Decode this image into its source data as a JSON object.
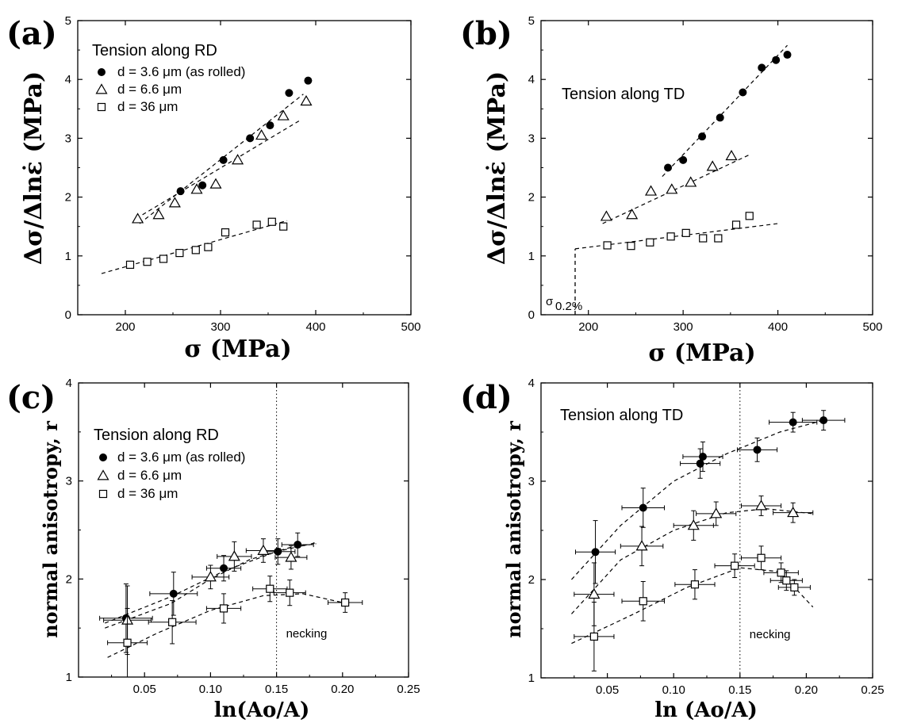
{
  "chart_data": [
    {
      "panel": "(a)",
      "type": "scatter",
      "xlabel": "σ (MPa)",
      "ylabel": "Δσ/Δlnε̇ (MPa)",
      "xlim": [
        150,
        500
      ],
      "ylim": [
        0,
        5
      ],
      "xticks": [
        "200",
        "300",
        "400",
        "500"
      ],
      "yticks": [
        "0",
        "1",
        "2",
        "3",
        "4",
        "5"
      ],
      "heading": "Tension along RD",
      "series": [
        {
          "name": "d = 3.6 μm  (as rolled)",
          "marker": "filled-circle",
          "points": [
            [
              258,
              2.1
            ],
            [
              281,
              2.2
            ],
            [
              303,
              2.63
            ],
            [
              331,
              3.0
            ],
            [
              352,
              3.22
            ],
            [
              372,
              3.77
            ],
            [
              392,
              3.98
            ]
          ],
          "fit": [
            [
              215,
              1.55
            ],
            [
              387,
              3.75
            ]
          ]
        },
        {
          "name": "d = 6.6 μm",
          "marker": "open-triangle",
          "points": [
            [
              213,
              1.63
            ],
            [
              235,
              1.7
            ],
            [
              252,
              1.9
            ],
            [
              275,
              2.13
            ],
            [
              295,
              2.22
            ],
            [
              318,
              2.63
            ],
            [
              343,
              3.05
            ],
            [
              366,
              3.38
            ],
            [
              390,
              3.63
            ]
          ],
          "fit": [
            [
              218,
              1.7
            ],
            [
              383,
              3.3
            ]
          ]
        },
        {
          "name": "d = 36  μm",
          "marker": "open-square",
          "points": [
            [
              205,
              0.85
            ],
            [
              223,
              0.9
            ],
            [
              240,
              0.95
            ],
            [
              257,
              1.05
            ],
            [
              274,
              1.1
            ],
            [
              287,
              1.15
            ],
            [
              305,
              1.4
            ],
            [
              338,
              1.53
            ],
            [
              354,
              1.58
            ],
            [
              366,
              1.5
            ]
          ],
          "fit": [
            [
              175,
              0.7
            ],
            [
              370,
              1.6
            ]
          ]
        }
      ]
    },
    {
      "panel": "(b)",
      "type": "scatter",
      "xlabel": "σ (MPa)",
      "ylabel": "Δσ/Δlnε̇ (MPa)",
      "xlim": [
        150,
        500
      ],
      "ylim": [
        0,
        5
      ],
      "xticks": [
        "200",
        "300",
        "400",
        "500"
      ],
      "yticks": [
        "0",
        "1",
        "2",
        "3",
        "4",
        "5"
      ],
      "heading": "Tension along TD",
      "annotation": "σ",
      "annotation_sub": "0.2%",
      "series": [
        {
          "name": "d = 3.6 μm",
          "marker": "filled-circle",
          "points": [
            [
              284,
              2.5
            ],
            [
              300,
              2.63
            ],
            [
              320,
              3.03
            ],
            [
              339,
              3.35
            ],
            [
              363,
              3.78
            ],
            [
              383,
              4.2
            ],
            [
              398,
              4.33
            ],
            [
              410,
              4.42
            ]
          ],
          "fit": [
            [
              278,
              2.35
            ],
            [
              410,
              4.58
            ]
          ]
        },
        {
          "name": "d = 6.6 μm",
          "marker": "open-triangle",
          "points": [
            [
              219,
              1.67
            ],
            [
              246,
              1.7
            ],
            [
              266,
              2.1
            ],
            [
              288,
              2.13
            ],
            [
              308,
              2.25
            ],
            [
              331,
              2.52
            ],
            [
              351,
              2.7
            ]
          ],
          "fit": [
            [
              215,
              1.55
            ],
            [
              370,
              2.72
            ]
          ]
        },
        {
          "name": "d = 36  μm",
          "marker": "open-square",
          "points": [
            [
              220,
              1.18
            ],
            [
              245,
              1.17
            ],
            [
              265,
              1.23
            ],
            [
              287,
              1.33
            ],
            [
              303,
              1.39
            ],
            [
              321,
              1.3
            ],
            [
              337,
              1.3
            ],
            [
              356,
              1.53
            ],
            [
              370,
              1.68
            ]
          ],
          "fit": [
            [
              186,
              1.12
            ],
            [
              400,
              1.55
            ]
          ]
        }
      ],
      "yield_line": {
        "x": 186,
        "ybottom": 0,
        "ytop": 1.12
      }
    },
    {
      "panel": "(c)",
      "type": "scatter",
      "xlabel": "ln(Ao/A)",
      "ylabel": "normal anisotropy, r",
      "xlim": [
        0.0,
        0.25
      ],
      "ylim": [
        1,
        4
      ],
      "xticks": [
        "0.05",
        "0.10",
        "0.15",
        "0.20",
        "0.25"
      ],
      "yticks": [
        "1",
        "2",
        "3",
        "4"
      ],
      "heading": "Tension along RD",
      "annotation": "necking",
      "necking_x": 0.15,
      "series": [
        {
          "name": "d = 3.6 μm  (as rolled)",
          "marker": "filled-circle",
          "points": [
            [
              0.036,
              1.6,
              0.02,
              0.35
            ],
            [
              0.072,
              1.85,
              0.018,
              0.22
            ],
            [
              0.11,
              2.11,
              0.013,
              0.13
            ],
            [
              0.151,
              2.28,
              0.013,
              0.13
            ],
            [
              0.166,
              2.35,
              0.012,
              0.12
            ]
          ],
          "fit": [
            [
              0.02,
              1.55
            ],
            [
              0.07,
              1.82
            ],
            [
              0.11,
              2.08
            ],
            [
              0.15,
              2.28
            ],
            [
              0.18,
              2.37
            ]
          ]
        },
        {
          "name": "d = 6.6 μm",
          "marker": "open-triangle",
          "points": [
            [
              0.037,
              1.58,
              0.018,
              0.35
            ],
            [
              0.1,
              2.02,
              0.014,
              0.12
            ],
            [
              0.118,
              2.23,
              0.013,
              0.15
            ],
            [
              0.14,
              2.29,
              0.013,
              0.12
            ],
            [
              0.161,
              2.22,
              0.012,
              0.12
            ]
          ],
          "fit": [
            [
              0.02,
              1.5
            ],
            [
              0.07,
              1.75
            ],
            [
              0.1,
              2.0
            ],
            [
              0.13,
              2.2
            ],
            [
              0.16,
              2.32
            ],
            [
              0.18,
              2.36
            ]
          ]
        },
        {
          "name": "d = 36  μm",
          "marker": "open-square",
          "points": [
            [
              0.037,
              1.35,
              0.015,
              0.35
            ],
            [
              0.071,
              1.56,
              0.018,
              0.22
            ],
            [
              0.11,
              1.7,
              0.013,
              0.15
            ],
            [
              0.145,
              1.9,
              0.013,
              0.13
            ],
            [
              0.16,
              1.86,
              0.012,
              0.13
            ],
            [
              0.202,
              1.76,
              0.013,
              0.1
            ]
          ],
          "fit": [
            [
              0.022,
              1.2
            ],
            [
              0.06,
              1.45
            ],
            [
              0.1,
              1.68
            ],
            [
              0.14,
              1.83
            ],
            [
              0.17,
              1.85
            ],
            [
              0.2,
              1.76
            ]
          ]
        }
      ]
    },
    {
      "panel": "(d)",
      "type": "scatter",
      "xlabel": "ln (Ao/A)",
      "ylabel": "normal anisotropy, r",
      "xlim": [
        0.0,
        0.25
      ],
      "ylim": [
        1,
        4
      ],
      "xticks": [
        "0.05",
        "0.10",
        "0.15",
        "0.20",
        "0.25"
      ],
      "yticks": [
        "1",
        "2",
        "3",
        "4"
      ],
      "heading": "Tension along TD",
      "annotation": "necking",
      "necking_x": 0.15,
      "series": [
        {
          "name": "d = 3.6 μm",
          "marker": "filled-circle",
          "points": [
            [
              0.041,
              2.28,
              0.015,
              0.32
            ],
            [
              0.077,
              2.73,
              0.016,
              0.2
            ],
            [
              0.12,
              3.18,
              0.015,
              0.15
            ],
            [
              0.122,
              3.25,
              0.015,
              0.15
            ],
            [
              0.163,
              3.32,
              0.015,
              0.12
            ],
            [
              0.19,
              3.6,
              0.018,
              0.1
            ],
            [
              0.213,
              3.62,
              0.016,
              0.1
            ]
          ],
          "fit": [
            [
              0.023,
              2.0
            ],
            [
              0.06,
              2.55
            ],
            [
              0.1,
              3.0
            ],
            [
              0.14,
              3.28
            ],
            [
              0.18,
              3.5
            ],
            [
              0.213,
              3.62
            ]
          ]
        },
        {
          "name": "d = 6.6 μm",
          "marker": "open-triangle",
          "points": [
            [
              0.04,
              1.85,
              0.015,
              0.32
            ],
            [
              0.076,
              2.34,
              0.016,
              0.2
            ],
            [
              0.115,
              2.55,
              0.015,
              0.15
            ],
            [
              0.132,
              2.67,
              0.015,
              0.12
            ],
            [
              0.166,
              2.75,
              0.015,
              0.1
            ],
            [
              0.19,
              2.68,
              0.015,
              0.1
            ]
          ],
          "fit": [
            [
              0.023,
              1.65
            ],
            [
              0.06,
              2.2
            ],
            [
              0.1,
              2.5
            ],
            [
              0.14,
              2.68
            ],
            [
              0.17,
              2.72
            ],
            [
              0.205,
              2.67
            ]
          ]
        },
        {
          "name": "d = 36  μm",
          "marker": "open-square",
          "points": [
            [
              0.04,
              1.42,
              0.015,
              0.35
            ],
            [
              0.077,
              1.78,
              0.016,
              0.2
            ],
            [
              0.116,
              1.95,
              0.015,
              0.15
            ],
            [
              0.146,
              2.14,
              0.015,
              0.12
            ],
            [
              0.166,
              2.22,
              0.015,
              0.12
            ],
            [
              0.181,
              2.07,
              0.013,
              0.1
            ],
            [
              0.185,
              1.99,
              0.012,
              0.1
            ],
            [
              0.191,
              1.92,
              0.012,
              0.08
            ]
          ],
          "fit": [
            [
              0.023,
              1.35
            ],
            [
              0.07,
              1.65
            ],
            [
              0.11,
              1.92
            ],
            [
              0.15,
              2.12
            ],
            [
              0.18,
              2.08
            ],
            [
              0.205,
              1.72
            ]
          ]
        }
      ]
    }
  ]
}
